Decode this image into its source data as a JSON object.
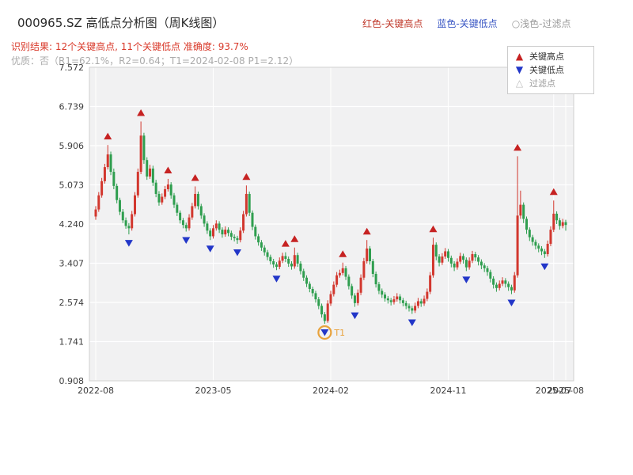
{
  "header": {
    "title": "000965.SZ 高低点分析图（周K线图）",
    "legend_inline": [
      {
        "label": "红色-关键高点",
        "color": "#c0392b"
      },
      {
        "label": "蓝色-关键低点",
        "color": "#3a57c4"
      },
      {
        "label": "○浅色-过滤点",
        "color": "#9b9b9b"
      }
    ],
    "result_line": "识别结果: 12个关键高点, 11个关键低点  准确度: 93.7%",
    "quality_line": "优质：否（R1=62.1%，R2=0.64；T1=2024-02-08 P1=2.12）"
  },
  "plot_legend": {
    "items": [
      {
        "glyph": "▲",
        "label": "关键高点",
        "color": "#c62222",
        "text_color": "#333333"
      },
      {
        "glyph": "▼",
        "label": "关键低点",
        "color": "#2236c8",
        "text_color": "#333333"
      },
      {
        "glyph": "△",
        "label": "过滤点",
        "color": "#bdbdbd",
        "text_color": "#9b9b9b"
      }
    ]
  },
  "chart_data": {
    "type": "candlestick",
    "title": "000965.SZ 高低点分析图（周K线图）",
    "xlabel": "",
    "ylabel": "",
    "ylim": [
      0.908,
      7.572
    ],
    "grid": true,
    "y_ticks": [
      0.908,
      1.741,
      2.574,
      3.407,
      4.24,
      5.073,
      5.906,
      6.739,
      7.572
    ],
    "x_ticks": [
      {
        "i": 0,
        "label": "2022-08"
      },
      {
        "i": 39,
        "label": "2023-05"
      },
      {
        "i": 78,
        "label": "2024-02"
      },
      {
        "i": 117,
        "label": "2024-11"
      },
      {
        "i": 152,
        "label": "2025-07"
      },
      {
        "i": 156,
        "label": "2025-08"
      }
    ],
    "up_color": "#d2372e",
    "down_color": "#2f9e4f",
    "high_marker_color": "#c62222",
    "low_marker_color": "#2236c8",
    "stats": {
      "key_high_count": 12,
      "key_low_count": 11,
      "accuracy": "93.7%",
      "R1": "62.1%",
      "R2": "0.64",
      "T1": "2024-02-08",
      "P1": "2.12"
    },
    "candles": [
      [
        4.4,
        4.62,
        4.33,
        4.55
      ],
      [
        4.55,
        4.92,
        4.5,
        4.85
      ],
      [
        4.85,
        5.22,
        4.8,
        5.15
      ],
      [
        5.15,
        5.52,
        5.1,
        5.45
      ],
      [
        5.45,
        5.92,
        5.4,
        5.72
      ],
      [
        5.72,
        5.78,
        5.28,
        5.35
      ],
      [
        5.35,
        5.42,
        4.98,
        5.05
      ],
      [
        5.05,
        5.1,
        4.68,
        4.75
      ],
      [
        4.75,
        4.8,
        4.43,
        4.5
      ],
      [
        4.5,
        4.56,
        4.26,
        4.32
      ],
      [
        4.32,
        4.38,
        4.14,
        4.2
      ],
      [
        4.2,
        4.26,
        4.02,
        4.15
      ],
      [
        4.15,
        4.52,
        4.1,
        4.45
      ],
      [
        4.45,
        4.92,
        4.4,
        4.85
      ],
      [
        4.85,
        5.42,
        4.8,
        5.35
      ],
      [
        5.35,
        6.42,
        5.3,
        6.12
      ],
      [
        6.12,
        6.18,
        5.52,
        5.6
      ],
      [
        5.6,
        5.66,
        5.18,
        5.25
      ],
      [
        5.25,
        5.5,
        5.2,
        5.42
      ],
      [
        5.42,
        5.48,
        5.05,
        5.12
      ],
      [
        5.12,
        5.18,
        4.81,
        4.88
      ],
      [
        4.88,
        4.94,
        4.63,
        4.7
      ],
      [
        4.7,
        4.89,
        4.65,
        4.82
      ],
      [
        4.82,
        5.05,
        4.77,
        4.98
      ],
      [
        4.98,
        5.2,
        4.93,
        5.08
      ],
      [
        5.08,
        5.13,
        4.78,
        4.85
      ],
      [
        4.85,
        4.9,
        4.58,
        4.65
      ],
      [
        4.65,
        4.7,
        4.41,
        4.48
      ],
      [
        4.48,
        4.53,
        4.25,
        4.32
      ],
      [
        4.32,
        4.37,
        4.15,
        4.22
      ],
      [
        4.22,
        4.27,
        4.08,
        4.15
      ],
      [
        4.15,
        4.45,
        4.1,
        4.38
      ],
      [
        4.38,
        4.69,
        4.33,
        4.62
      ],
      [
        4.62,
        5.04,
        4.57,
        4.88
      ],
      [
        4.88,
        4.93,
        4.55,
        4.62
      ],
      [
        4.62,
        4.67,
        4.35,
        4.42
      ],
      [
        4.42,
        4.47,
        4.18,
        4.25
      ],
      [
        4.25,
        4.3,
        4.03,
        4.1
      ],
      [
        4.1,
        4.15,
        3.9,
        3.98
      ],
      [
        3.98,
        4.22,
        3.93,
        4.15
      ],
      [
        4.15,
        4.32,
        4.1,
        4.25
      ],
      [
        4.25,
        4.3,
        4.05,
        4.12
      ],
      [
        4.12,
        4.17,
        3.95,
        4.02
      ],
      [
        4.02,
        4.19,
        3.97,
        4.12
      ],
      [
        4.12,
        4.17,
        3.98,
        4.05
      ],
      [
        4.05,
        4.1,
        3.9,
        3.97
      ],
      [
        3.97,
        4.02,
        3.87,
        3.94
      ],
      [
        3.94,
        3.99,
        3.82,
        3.9
      ],
      [
        3.9,
        4.17,
        3.85,
        4.1
      ],
      [
        4.1,
        4.52,
        4.05,
        4.45
      ],
      [
        4.45,
        5.06,
        4.4,
        4.88
      ],
      [
        4.88,
        4.93,
        4.41,
        4.48
      ],
      [
        4.48,
        4.53,
        4.11,
        4.18
      ],
      [
        4.18,
        4.23,
        3.91,
        3.98
      ],
      [
        3.98,
        4.03,
        3.78,
        3.85
      ],
      [
        3.85,
        3.9,
        3.67,
        3.74
      ],
      [
        3.74,
        3.79,
        3.57,
        3.64
      ],
      [
        3.64,
        3.69,
        3.47,
        3.54
      ],
      [
        3.54,
        3.59,
        3.38,
        3.45
      ],
      [
        3.45,
        3.5,
        3.31,
        3.38
      ],
      [
        3.38,
        3.43,
        3.26,
        3.33
      ],
      [
        3.33,
        3.53,
        3.28,
        3.46
      ],
      [
        3.46,
        3.63,
        3.41,
        3.56
      ],
      [
        3.56,
        3.64,
        3.43,
        3.5
      ],
      [
        3.5,
        3.55,
        3.33,
        3.4
      ],
      [
        3.4,
        3.45,
        3.27,
        3.34
      ],
      [
        3.34,
        3.74,
        3.29,
        3.58
      ],
      [
        3.58,
        3.63,
        3.33,
        3.4
      ],
      [
        3.4,
        3.45,
        3.17,
        3.24
      ],
      [
        3.24,
        3.29,
        3.03,
        3.1
      ],
      [
        3.1,
        3.15,
        2.9,
        2.97
      ],
      [
        2.97,
        3.02,
        2.79,
        2.86
      ],
      [
        2.86,
        2.91,
        2.7,
        2.77
      ],
      [
        2.77,
        2.82,
        2.57,
        2.64
      ],
      [
        2.64,
        2.69,
        2.43,
        2.5
      ],
      [
        2.5,
        2.55,
        2.25,
        2.32
      ],
      [
        2.32,
        2.37,
        2.12,
        2.18
      ],
      [
        2.18,
        2.62,
        2.14,
        2.55
      ],
      [
        2.55,
        2.82,
        2.5,
        2.75
      ],
      [
        2.75,
        3.02,
        2.7,
        2.95
      ],
      [
        2.95,
        3.22,
        2.9,
        3.15
      ],
      [
        3.15,
        3.27,
        3.1,
        3.2
      ],
      [
        3.2,
        3.42,
        3.15,
        3.3
      ],
      [
        3.3,
        3.35,
        3.05,
        3.12
      ],
      [
        3.12,
        3.17,
        2.85,
        2.92
      ],
      [
        2.92,
        2.97,
        2.65,
        2.72
      ],
      [
        2.72,
        2.77,
        2.48,
        2.56
      ],
      [
        2.56,
        2.85,
        2.51,
        2.78
      ],
      [
        2.78,
        3.17,
        2.73,
        3.1
      ],
      [
        3.1,
        3.52,
        3.05,
        3.45
      ],
      [
        3.45,
        3.9,
        3.4,
        3.72
      ],
      [
        3.72,
        3.77,
        3.38,
        3.45
      ],
      [
        3.45,
        3.5,
        3.11,
        3.18
      ],
      [
        3.18,
        3.23,
        2.89,
        2.96
      ],
      [
        2.96,
        3.01,
        2.75,
        2.82
      ],
      [
        2.82,
        2.87,
        2.67,
        2.74
      ],
      [
        2.74,
        2.79,
        2.59,
        2.66
      ],
      [
        2.66,
        2.71,
        2.55,
        2.62
      ],
      [
        2.62,
        2.67,
        2.51,
        2.58
      ],
      [
        2.58,
        2.71,
        2.53,
        2.64
      ],
      [
        2.64,
        2.77,
        2.59,
        2.7
      ],
      [
        2.7,
        2.75,
        2.55,
        2.62
      ],
      [
        2.62,
        2.67,
        2.49,
        2.56
      ],
      [
        2.56,
        2.61,
        2.43,
        2.5
      ],
      [
        2.5,
        2.55,
        2.38,
        2.45
      ],
      [
        2.45,
        2.5,
        2.33,
        2.4
      ],
      [
        2.4,
        2.57,
        2.35,
        2.5
      ],
      [
        2.5,
        2.67,
        2.45,
        2.6
      ],
      [
        2.6,
        2.65,
        2.48,
        2.55
      ],
      [
        2.55,
        2.72,
        2.5,
        2.65
      ],
      [
        2.65,
        2.87,
        2.6,
        2.8
      ],
      [
        2.8,
        3.22,
        2.75,
        3.15
      ],
      [
        3.15,
        3.95,
        3.1,
        3.8
      ],
      [
        3.8,
        3.85,
        3.47,
        3.55
      ],
      [
        3.55,
        3.6,
        3.34,
        3.42
      ],
      [
        3.42,
        3.62,
        3.37,
        3.55
      ],
      [
        3.55,
        3.73,
        3.5,
        3.66
      ],
      [
        3.66,
        3.71,
        3.44,
        3.52
      ],
      [
        3.52,
        3.57,
        3.32,
        3.4
      ],
      [
        3.4,
        3.45,
        3.24,
        3.32
      ],
      [
        3.32,
        3.51,
        3.27,
        3.44
      ],
      [
        3.44,
        3.63,
        3.39,
        3.56
      ],
      [
        3.56,
        3.61,
        3.4,
        3.48
      ],
      [
        3.48,
        3.53,
        3.24,
        3.32
      ],
      [
        3.32,
        3.53,
        3.27,
        3.46
      ],
      [
        3.46,
        3.67,
        3.41,
        3.6
      ],
      [
        3.6,
        3.65,
        3.45,
        3.53
      ],
      [
        3.53,
        3.58,
        3.36,
        3.44
      ],
      [
        3.44,
        3.49,
        3.28,
        3.36
      ],
      [
        3.36,
        3.41,
        3.22,
        3.3
      ],
      [
        3.3,
        3.35,
        3.14,
        3.22
      ],
      [
        3.22,
        3.27,
        3.0,
        3.08
      ],
      [
        3.08,
        3.13,
        2.87,
        2.95
      ],
      [
        2.95,
        3.0,
        2.8,
        2.88
      ],
      [
        2.88,
        3.04,
        2.83,
        2.97
      ],
      [
        2.97,
        3.11,
        2.92,
        3.04
      ],
      [
        3.04,
        3.09,
        2.89,
        2.97
      ],
      [
        2.97,
        3.02,
        2.82,
        2.9
      ],
      [
        2.9,
        2.95,
        2.75,
        2.83
      ],
      [
        2.83,
        3.22,
        2.78,
        3.15
      ],
      [
        3.15,
        5.68,
        3.1,
        4.42
      ],
      [
        4.42,
        4.95,
        4.35,
        4.65
      ],
      [
        4.65,
        4.7,
        4.26,
        4.35
      ],
      [
        4.35,
        4.4,
        4.03,
        4.12
      ],
      [
        4.12,
        4.17,
        3.88,
        3.96
      ],
      [
        3.96,
        4.01,
        3.78,
        3.86
      ],
      [
        3.86,
        3.91,
        3.7,
        3.78
      ],
      [
        3.78,
        3.83,
        3.64,
        3.72
      ],
      [
        3.72,
        3.77,
        3.58,
        3.66
      ],
      [
        3.66,
        3.71,
        3.52,
        3.6
      ],
      [
        3.6,
        3.89,
        3.55,
        3.82
      ],
      [
        3.82,
        4.19,
        3.77,
        4.12
      ],
      [
        4.12,
        4.74,
        4.07,
        4.46
      ],
      [
        4.46,
        4.51,
        4.24,
        4.32
      ],
      [
        4.32,
        4.37,
        4.12,
        4.2
      ],
      [
        4.2,
        4.35,
        4.15,
        4.28
      ],
      [
        4.28,
        4.33,
        4.1,
        4.22
      ]
    ],
    "key_highs": [
      {
        "i": 4,
        "price": 5.92
      },
      {
        "i": 15,
        "price": 6.42
      },
      {
        "i": 24,
        "price": 5.2
      },
      {
        "i": 33,
        "price": 5.04
      },
      {
        "i": 50,
        "price": 5.06
      },
      {
        "i": 63,
        "price": 3.64
      },
      {
        "i": 66,
        "price": 3.74
      },
      {
        "i": 82,
        "price": 3.42
      },
      {
        "i": 90,
        "price": 3.9
      },
      {
        "i": 112,
        "price": 3.95
      },
      {
        "i": 140,
        "price": 5.68
      },
      {
        "i": 152,
        "price": 4.74
      }
    ],
    "key_lows": [
      {
        "i": 11,
        "price": 4.02
      },
      {
        "i": 30,
        "price": 4.08
      },
      {
        "i": 38,
        "price": 3.9
      },
      {
        "i": 47,
        "price": 3.82
      },
      {
        "i": 60,
        "price": 3.26
      },
      {
        "i": 76,
        "price": 2.12
      },
      {
        "i": 86,
        "price": 2.48
      },
      {
        "i": 105,
        "price": 2.33
      },
      {
        "i": 123,
        "price": 3.24
      },
      {
        "i": 138,
        "price": 2.75
      },
      {
        "i": 149,
        "price": 3.52
      }
    ],
    "t1_marker": {
      "i": 76,
      "price": 2.12,
      "label": "T1",
      "color": "#e8a23c"
    }
  }
}
